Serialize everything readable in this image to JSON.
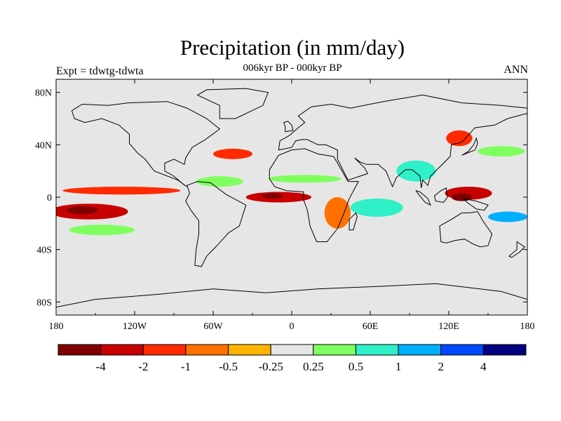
{
  "header": {
    "title": "Precipitation (in mm/day)",
    "subtitle": "006kyr BP - 000kyr BP",
    "left_label": "Expt = tdwtg-tdwta",
    "right_label": "ANN"
  },
  "map": {
    "projection": "cylindrical equidistant",
    "lon_range": [
      -180,
      180
    ],
    "lat_range": [
      -90,
      90
    ],
    "background_color": "#e6e6e6",
    "x_ticks": [
      {
        "lon": -180,
        "label": "180"
      },
      {
        "lon": -120,
        "label": "120W"
      },
      {
        "lon": -60,
        "label": "60W"
      },
      {
        "lon": 0,
        "label": "0"
      },
      {
        "lon": 60,
        "label": "60E"
      },
      {
        "lon": 120,
        "label": "120E"
      },
      {
        "lon": 180,
        "label": "180"
      }
    ],
    "y_ticks": [
      {
        "lat": 80,
        "label": "80N"
      },
      {
        "lat": 40,
        "label": "40N"
      },
      {
        "lat": 0,
        "label": "0"
      },
      {
        "lat": -40,
        "label": "40S"
      },
      {
        "lat": -80,
        "label": "80S"
      }
    ],
    "anomaly_regions": [
      {
        "name": "central-pacific-dry-south",
        "level": -2,
        "lon": -155,
        "lat": -11,
        "rlon": 30,
        "rlat": 6
      },
      {
        "name": "central-pacific-very-dry",
        "level": -4,
        "lon": -160,
        "lat": -10,
        "rlon": 12,
        "rlat": 3
      },
      {
        "name": "pacific-itcz-dry",
        "level": -1,
        "lon": -130,
        "lat": 5,
        "rlon": 45,
        "rlat": 3
      },
      {
        "name": "pacific-south-wet",
        "level": 0.5,
        "lon": -145,
        "lat": -25,
        "rlon": 25,
        "rlat": 4
      },
      {
        "name": "atlantic-africa-dry",
        "level": -2,
        "lon": -10,
        "lat": 0,
        "rlon": 25,
        "rlat": 4
      },
      {
        "name": "atlantic-dry-core",
        "level": -4,
        "lon": -15,
        "lat": 1,
        "rlon": 8,
        "rlat": 2
      },
      {
        "name": "south-america-wet",
        "level": 0.5,
        "lon": -55,
        "lat": 12,
        "rlon": 18,
        "rlat": 4
      },
      {
        "name": "north-atlantic-dry",
        "level": -1,
        "lon": -45,
        "lat": 33,
        "rlon": 15,
        "rlat": 4
      },
      {
        "name": "east-africa-dry",
        "level": -0.5,
        "lon": 35,
        "lat": -12,
        "rlon": 10,
        "rlat": 12
      },
      {
        "name": "indian-ocean-wet",
        "level": 1,
        "lon": 65,
        "lat": -8,
        "rlon": 20,
        "rlat": 7
      },
      {
        "name": "sahel-wet",
        "level": 0.5,
        "lon": 10,
        "lat": 14,
        "rlon": 28,
        "rlat": 3
      },
      {
        "name": "south-asia-wet",
        "level": 1,
        "lon": 95,
        "lat": 20,
        "rlon": 15,
        "rlat": 8
      },
      {
        "name": "maritime-continent-dry",
        "level": -2,
        "lon": 135,
        "lat": 3,
        "rlon": 18,
        "rlat": 5
      },
      {
        "name": "maritime-continent-core",
        "level": -4,
        "lon": 130,
        "lat": 0,
        "rlon": 8,
        "rlat": 3
      },
      {
        "name": "west-pacific-wet",
        "level": 2,
        "lon": 165,
        "lat": -15,
        "rlon": 15,
        "rlat": 4
      },
      {
        "name": "east-asia-dry",
        "level": -1,
        "lon": 128,
        "lat": 45,
        "rlon": 10,
        "rlat": 6
      },
      {
        "name": "north-pacific-wet",
        "level": 0.5,
        "lon": 160,
        "lat": 35,
        "rlon": 18,
        "rlat": 4
      }
    ]
  },
  "colorbar": {
    "colors": [
      "#7f0000",
      "#c80000",
      "#ff2a00",
      "#ff7000",
      "#ffb400",
      "#e6e6e6",
      "#80ff60",
      "#30f0c8",
      "#00b0ff",
      "#0048ff",
      "#000080"
    ],
    "levels": [
      "-4",
      "-2",
      "-1",
      "-0.5",
      "-0.25",
      "0.25",
      "0.5",
      "1",
      "2",
      "4"
    ]
  }
}
